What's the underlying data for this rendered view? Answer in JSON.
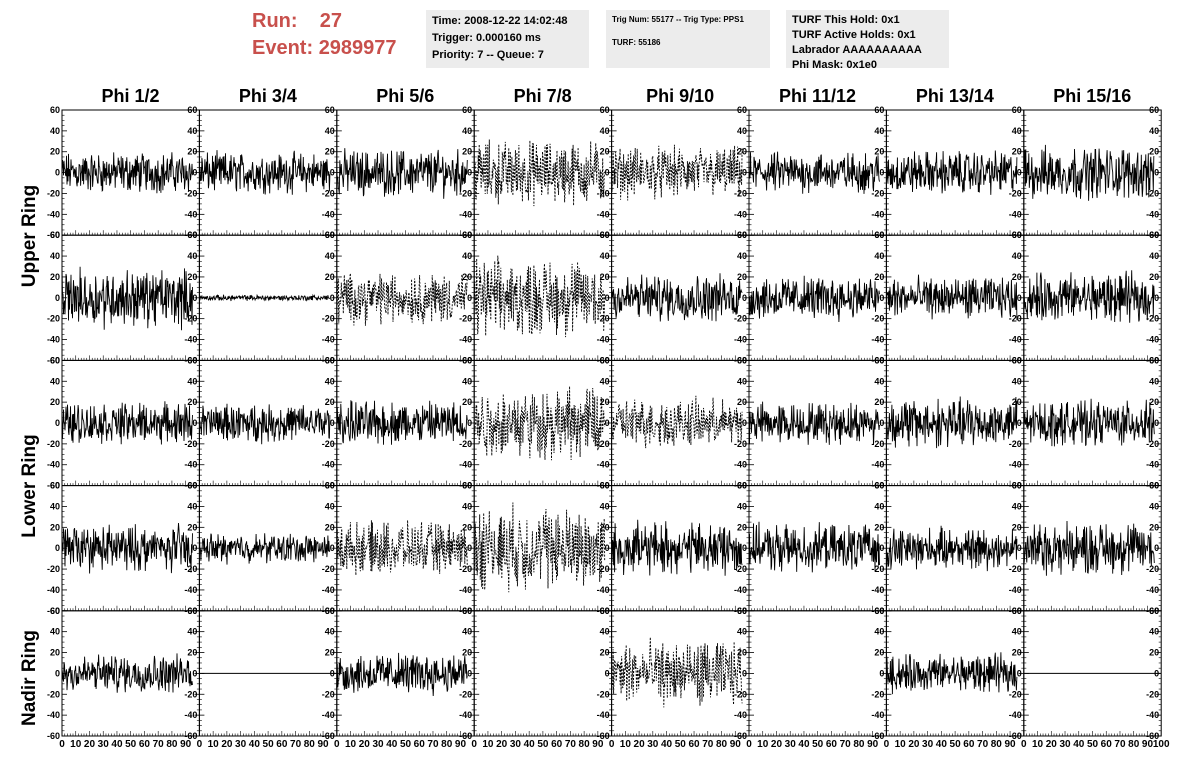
{
  "header": {
    "run_label": "Run:",
    "run_value": "27",
    "event_label": "Event:",
    "event_value": "2989977",
    "time": "Time: 2008-12-22 14:02:48",
    "trigger": "Trigger: 0.000160 ms",
    "priority": "Priority: 7 -- Queue: 7",
    "trig_num": "Trig Num: 55177 -- Trig Type: PPS1",
    "turf": "TURF: 55186",
    "turf_this_hold": "TURF This Hold: 0x1",
    "turf_active_holds": "TURF Active Holds: 0x1",
    "labrador": "Labrador AAAAAAAAAA",
    "phi_mask": "Phi Mask: 0x1e0"
  },
  "columns": [
    "Phi 1/2",
    "Phi 3/4",
    "Phi 5/6",
    "Phi 7/8",
    "Phi 9/10",
    "Phi 11/12",
    "Phi 13/14",
    "Phi 15/16"
  ],
  "row_labels": [
    "Upper Ring",
    "Lower Ring",
    "Nadir Ring"
  ],
  "colors": {
    "header_red": "#c8504c",
    "info_bg": "#ececec",
    "trace": "#000000"
  },
  "chart_data": {
    "type": "line",
    "layout": "grid of 5 rows x 8 columns of waveform panels",
    "ylim": [
      -60,
      60
    ],
    "yticks": [
      -60,
      -40,
      -20,
      0,
      20,
      40,
      60
    ],
    "xlim": [
      0,
      100
    ],
    "xticks": [
      0,
      10,
      20,
      30,
      40,
      50,
      60,
      70,
      80,
      90,
      100
    ],
    "ytick_labels": [
      "-60",
      "-40",
      "-20",
      "0",
      "20",
      "40",
      "60"
    ],
    "xtick_labels": [
      "0",
      "10",
      "20",
      "30",
      "40",
      "50",
      "60",
      "70",
      "80",
      "90",
      "100"
    ],
    "panels": [
      [
        {
          "style": "solid",
          "amp": 14
        },
        {
          "style": "solid",
          "amp": 14
        },
        {
          "style": "solid",
          "amp": 16
        },
        {
          "style": "dashed",
          "amp": 20
        },
        {
          "style": "dashed",
          "amp": 16
        },
        {
          "style": "solid",
          "amp": 14
        },
        {
          "style": "solid",
          "amp": 15
        },
        {
          "style": "solid",
          "amp": 18
        }
      ],
      [
        {
          "style": "solid",
          "amp": 20
        },
        {
          "style": "solid",
          "amp": 2
        },
        {
          "style": "dashed",
          "amp": 16
        },
        {
          "style": "dashed",
          "amp": 24
        },
        {
          "style": "solid",
          "amp": 16
        },
        {
          "style": "solid",
          "amp": 15
        },
        {
          "style": "solid",
          "amp": 14
        },
        {
          "style": "solid",
          "amp": 17
        }
      ],
      [
        {
          "style": "solid",
          "amp": 14
        },
        {
          "style": "solid",
          "amp": 13
        },
        {
          "style": "solid",
          "amp": 15
        },
        {
          "style": "dashed",
          "amp": 22
        },
        {
          "style": "dashed",
          "amp": 15
        },
        {
          "style": "solid",
          "amp": 14
        },
        {
          "style": "solid",
          "amp": 17
        },
        {
          "style": "solid",
          "amp": 15
        }
      ],
      [
        {
          "style": "solid",
          "amp": 16
        },
        {
          "style": "solid",
          "amp": 10
        },
        {
          "style": "dashed",
          "amp": 16
        },
        {
          "style": "dashed",
          "amp": 26
        },
        {
          "style": "solid",
          "amp": 18
        },
        {
          "style": "solid",
          "amp": 16
        },
        {
          "style": "solid",
          "amp": 14
        },
        {
          "style": "solid",
          "amp": 18
        }
      ],
      [
        {
          "style": "solid",
          "amp": 13
        },
        {
          "style": "flat",
          "amp": 0
        },
        {
          "style": "solid",
          "amp": 14
        },
        {
          "style": "empty",
          "amp": 0
        },
        {
          "style": "dashed",
          "amp": 20
        },
        {
          "style": "empty",
          "amp": 0
        },
        {
          "style": "solid",
          "amp": 13
        },
        {
          "style": "flat",
          "amp": 0
        }
      ]
    ]
  }
}
